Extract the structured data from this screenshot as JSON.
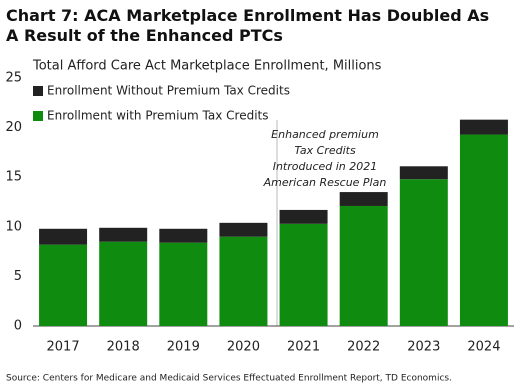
{
  "chart_data": {
    "type": "stacked_bar",
    "title": "Chart 7: ACA Marketplace Enrollment  Has Doubled As A Result of the Enhanced PTCs",
    "subtitle": "Total Afford Care Act Marketplace Enrollment, Millions",
    "categories": [
      "2017",
      "2018",
      "2019",
      "2020",
      "2021",
      "2022",
      "2023",
      "2024"
    ],
    "series": [
      {
        "name": "Enrollment Without Premium Tax Credits",
        "color": "#222222",
        "values": [
          1.6,
          1.4,
          1.4,
          1.4,
          1.4,
          1.4,
          1.3,
          1.5
        ]
      },
      {
        "name": "Enrollment with Premium Tax Credits",
        "color": "#0f8c0f",
        "values": [
          8.2,
          8.5,
          8.4,
          9.0,
          10.3,
          12.1,
          14.8,
          19.3
        ]
      }
    ],
    "ylim": [
      0,
      25
    ],
    "yticks": [
      0,
      5,
      10,
      15,
      20,
      25
    ],
    "annotation": [
      "Enhanced premium",
      "Tax Credits",
      "Introduced in 2021",
      "American Rescue Plan"
    ],
    "source": "Source: Centers for Medicare and Medicaid Services Effectuated Enrollment Report, TD Economics.",
    "legend": "top-left"
  }
}
